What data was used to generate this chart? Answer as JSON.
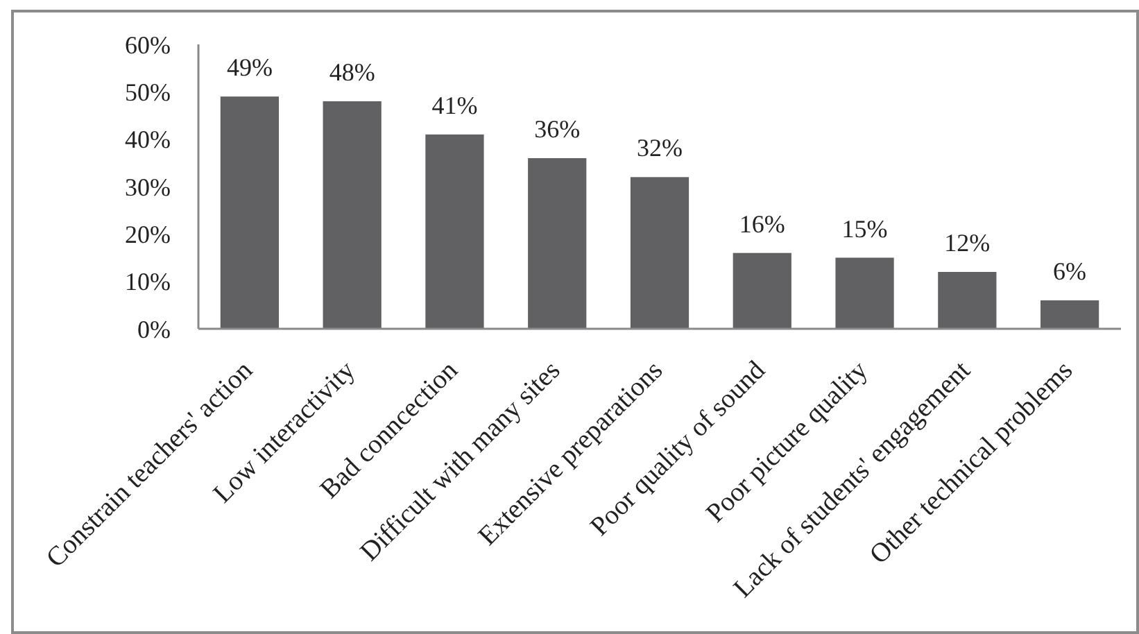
{
  "chart_data": {
    "type": "bar",
    "categories": [
      "Constrain teachers' action",
      "Low interactivity",
      "Bad conncection",
      "Difficult with many sites",
      "Extensive preparations",
      "Poor quality of sound",
      "Poor picture quality",
      "Lack of students' engagement",
      "Other technical problems"
    ],
    "values": [
      49,
      48,
      41,
      36,
      32,
      16,
      15,
      12,
      6
    ],
    "color": "#616163",
    "value_labels": [
      "49%",
      "48%",
      "41%",
      "36%",
      "32%",
      "16%",
      "15%",
      "12%",
      "6%"
    ],
    "ylim": [
      0,
      60
    ],
    "yticks": [
      {
        "value": 0,
        "label": "0%"
      },
      {
        "value": 10,
        "label": "10%"
      },
      {
        "value": 20,
        "label": "20%"
      },
      {
        "value": 30,
        "label": "30%"
      },
      {
        "value": 40,
        "label": "40%"
      },
      {
        "value": 50,
        "label": "50%"
      },
      {
        "value": 60,
        "label": "60%"
      }
    ]
  }
}
